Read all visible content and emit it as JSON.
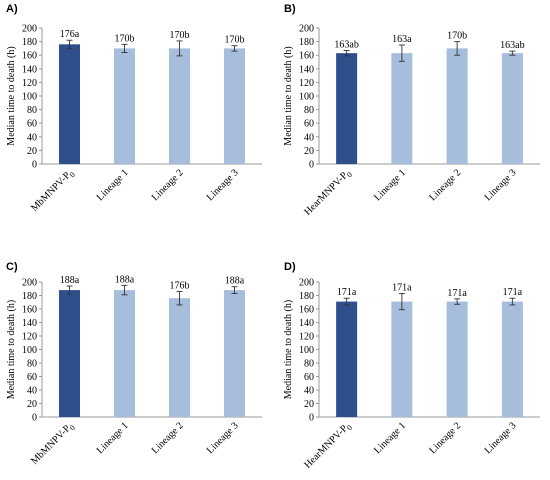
{
  "colors": {
    "control": "#2E4E8C",
    "lineage": "#A7BDDC",
    "axis": "#9a9a9a",
    "error": "#333333"
  },
  "chart_data": [
    {
      "panel": "A)",
      "type": "bar",
      "ylabel": "Median time to death (h)",
      "ylim": [
        0,
        200
      ],
      "yticks": [
        0,
        20,
        40,
        60,
        80,
        100,
        120,
        140,
        160,
        180,
        200
      ],
      "categories": [
        "MbMNPV-P₀",
        "Lineage 1",
        "Lineage 2",
        "Lineage 3"
      ],
      "values": [
        176,
        170,
        170,
        170
      ],
      "errors": [
        6,
        6,
        11,
        4
      ],
      "labels": [
        "176a",
        "170b",
        "170b",
        "170b"
      ]
    },
    {
      "panel": "B)",
      "type": "bar",
      "ylabel": "Median time to death (h)",
      "ylim": [
        0,
        200
      ],
      "yticks": [
        0,
        20,
        40,
        60,
        80,
        100,
        120,
        140,
        160,
        180,
        200
      ],
      "categories": [
        "HearMNPV-P₀",
        "Lineage 1",
        "Lineage 2",
        "Lineage 3"
      ],
      "values": [
        163,
        163,
        170,
        163
      ],
      "errors": [
        4,
        12,
        10,
        3
      ],
      "labels": [
        "163ab",
        "163a",
        "170b",
        "163ab"
      ]
    },
    {
      "panel": "C)",
      "type": "bar",
      "ylabel": "Median time to death (h)",
      "ylim": [
        0,
        200
      ],
      "yticks": [
        0,
        20,
        40,
        60,
        80,
        100,
        120,
        140,
        160,
        180,
        200
      ],
      "categories": [
        "MbMNPV-P₀",
        "Lineage 1",
        "Lineage 2",
        "Lineage 3"
      ],
      "values": [
        188,
        188,
        176,
        188
      ],
      "errors": [
        6,
        7,
        10,
        5
      ],
      "labels": [
        "188a",
        "188a",
        "176b",
        "188a"
      ]
    },
    {
      "panel": "D)",
      "type": "bar",
      "ylabel": "Median time to death (h)",
      "ylim": [
        0,
        200
      ],
      "yticks": [
        0,
        20,
        40,
        60,
        80,
        100,
        120,
        140,
        160,
        180,
        200
      ],
      "categories": [
        "HearMNPV-P₀",
        "Lineage 1",
        "Lineage 2",
        "Lineage 3"
      ],
      "values": [
        171,
        171,
        171,
        171
      ],
      "errors": [
        5,
        12,
        4,
        5
      ],
      "labels": [
        "171a",
        "171a",
        "171a",
        "171a"
      ]
    }
  ]
}
